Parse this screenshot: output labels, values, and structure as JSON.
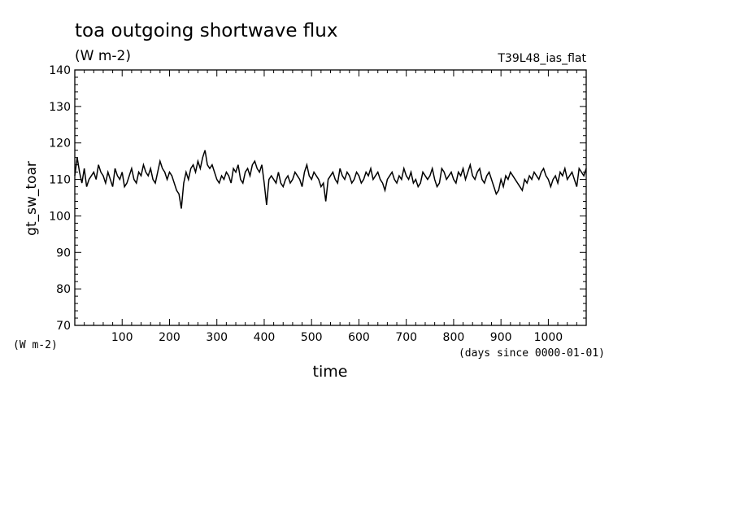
{
  "chart_data": {
    "type": "line",
    "title": "toa outgoing shortwave flux",
    "title_unit": "(W m-2)",
    "run_label": "T39L48_ias_flat",
    "ylabel": "gt_sw_toar",
    "y_unit": "(W m-2)",
    "xlabel": "time",
    "x_unit": "(days since 0000-01-01)",
    "xlim": [
      0,
      1080
    ],
    "ylim": [
      70,
      140
    ],
    "x_ticks": [
      100,
      200,
      300,
      400,
      500,
      600,
      700,
      800,
      900,
      1000
    ],
    "y_ticks": [
      70,
      80,
      90,
      100,
      110,
      120,
      130,
      140
    ],
    "grid": false,
    "line_color": "#000000",
    "series": [
      {
        "x": [
          0,
          5,
          10,
          15,
          20,
          25,
          30,
          35,
          40,
          45,
          50,
          55,
          60,
          65,
          70,
          75,
          80,
          85,
          90,
          95,
          100,
          105,
          110,
          115,
          120,
          125,
          130,
          135,
          140,
          145,
          150,
          155,
          160,
          165,
          170,
          175,
          180,
          185,
          190,
          195,
          200,
          205,
          210,
          215,
          220,
          225,
          230,
          235,
          240,
          245,
          250,
          255,
          260,
          265,
          270,
          275,
          280,
          285,
          290,
          295,
          300,
          305,
          310,
          315,
          320,
          325,
          330,
          335,
          340,
          345,
          350,
          355,
          360,
          365,
          370,
          375,
          380,
          385,
          390,
          395,
          400,
          405,
          410,
          415,
          420,
          425,
          430,
          435,
          440,
          445,
          450,
          455,
          460,
          465,
          470,
          475,
          480,
          485,
          490,
          495,
          500,
          505,
          510,
          515,
          520,
          525,
          530,
          535,
          540,
          545,
          550,
          555,
          560,
          565,
          570,
          575,
          580,
          585,
          590,
          595,
          600,
          605,
          610,
          615,
          620,
          625,
          630,
          635,
          640,
          645,
          650,
          655,
          660,
          665,
          670,
          675,
          680,
          685,
          690,
          695,
          700,
          705,
          710,
          715,
          720,
          725,
          730,
          735,
          740,
          745,
          750,
          755,
          760,
          765,
          770,
          775,
          780,
          785,
          790,
          795,
          800,
          805,
          810,
          815,
          820,
          825,
          830,
          835,
          840,
          845,
          850,
          855,
          860,
          865,
          870,
          875,
          880,
          885,
          890,
          895,
          900,
          905,
          910,
          915,
          920,
          925,
          930,
          935,
          940,
          945,
          950,
          955,
          960,
          965,
          970,
          975,
          980,
          985,
          990,
          995,
          1000,
          1005,
          1010,
          1015,
          1020,
          1025,
          1030,
          1035,
          1040,
          1045,
          1050,
          1055,
          1060,
          1065,
          1070,
          1075,
          1080
        ],
        "y": [
          111,
          116,
          112,
          109,
          113,
          108,
          110,
          111,
          112,
          110,
          114,
          112,
          111,
          109,
          112,
          110,
          108,
          113,
          111,
          110,
          112,
          108,
          109,
          111,
          113,
          110,
          109,
          112,
          111,
          114,
          112,
          111,
          113,
          110,
          109,
          112,
          115,
          113,
          112,
          110,
          112,
          111,
          109,
          107,
          106,
          102,
          109,
          112,
          110,
          113,
          114,
          112,
          115,
          113,
          116,
          118,
          114,
          113,
          114,
          112,
          110,
          109,
          111,
          110,
          112,
          111,
          109,
          113,
          112,
          114,
          110,
          109,
          112,
          113,
          111,
          114,
          115,
          113,
          112,
          114,
          109,
          103,
          110,
          111,
          110,
          109,
          112,
          109,
          108,
          110,
          111,
          109,
          110,
          112,
          111,
          110,
          108,
          112,
          114,
          111,
          110,
          112,
          111,
          110,
          108,
          109,
          104,
          110,
          111,
          112,
          110,
          109,
          113,
          111,
          110,
          112,
          111,
          109,
          110,
          112,
          111,
          109,
          110,
          112,
          111,
          113,
          110,
          111,
          112,
          110,
          109,
          107,
          110,
          111,
          112,
          110,
          109,
          111,
          110,
          113,
          111,
          110,
          112,
          109,
          110,
          108,
          109,
          112,
          111,
          110,
          111,
          113,
          110,
          108,
          109,
          113,
          112,
          110,
          111,
          112,
          110,
          109,
          112,
          111,
          113,
          110,
          112,
          114,
          111,
          110,
          112,
          113,
          110,
          109,
          111,
          112,
          110,
          108,
          106,
          107,
          110,
          108,
          111,
          110,
          112,
          111,
          110,
          109,
          108,
          107,
          110,
          109,
          111,
          110,
          112,
          111,
          110,
          112,
          113,
          111,
          110,
          108,
          110,
          111,
          109,
          112,
          111,
          113,
          110,
          111,
          112,
          110,
          108,
          113,
          112,
          111,
          113
        ]
      }
    ]
  }
}
